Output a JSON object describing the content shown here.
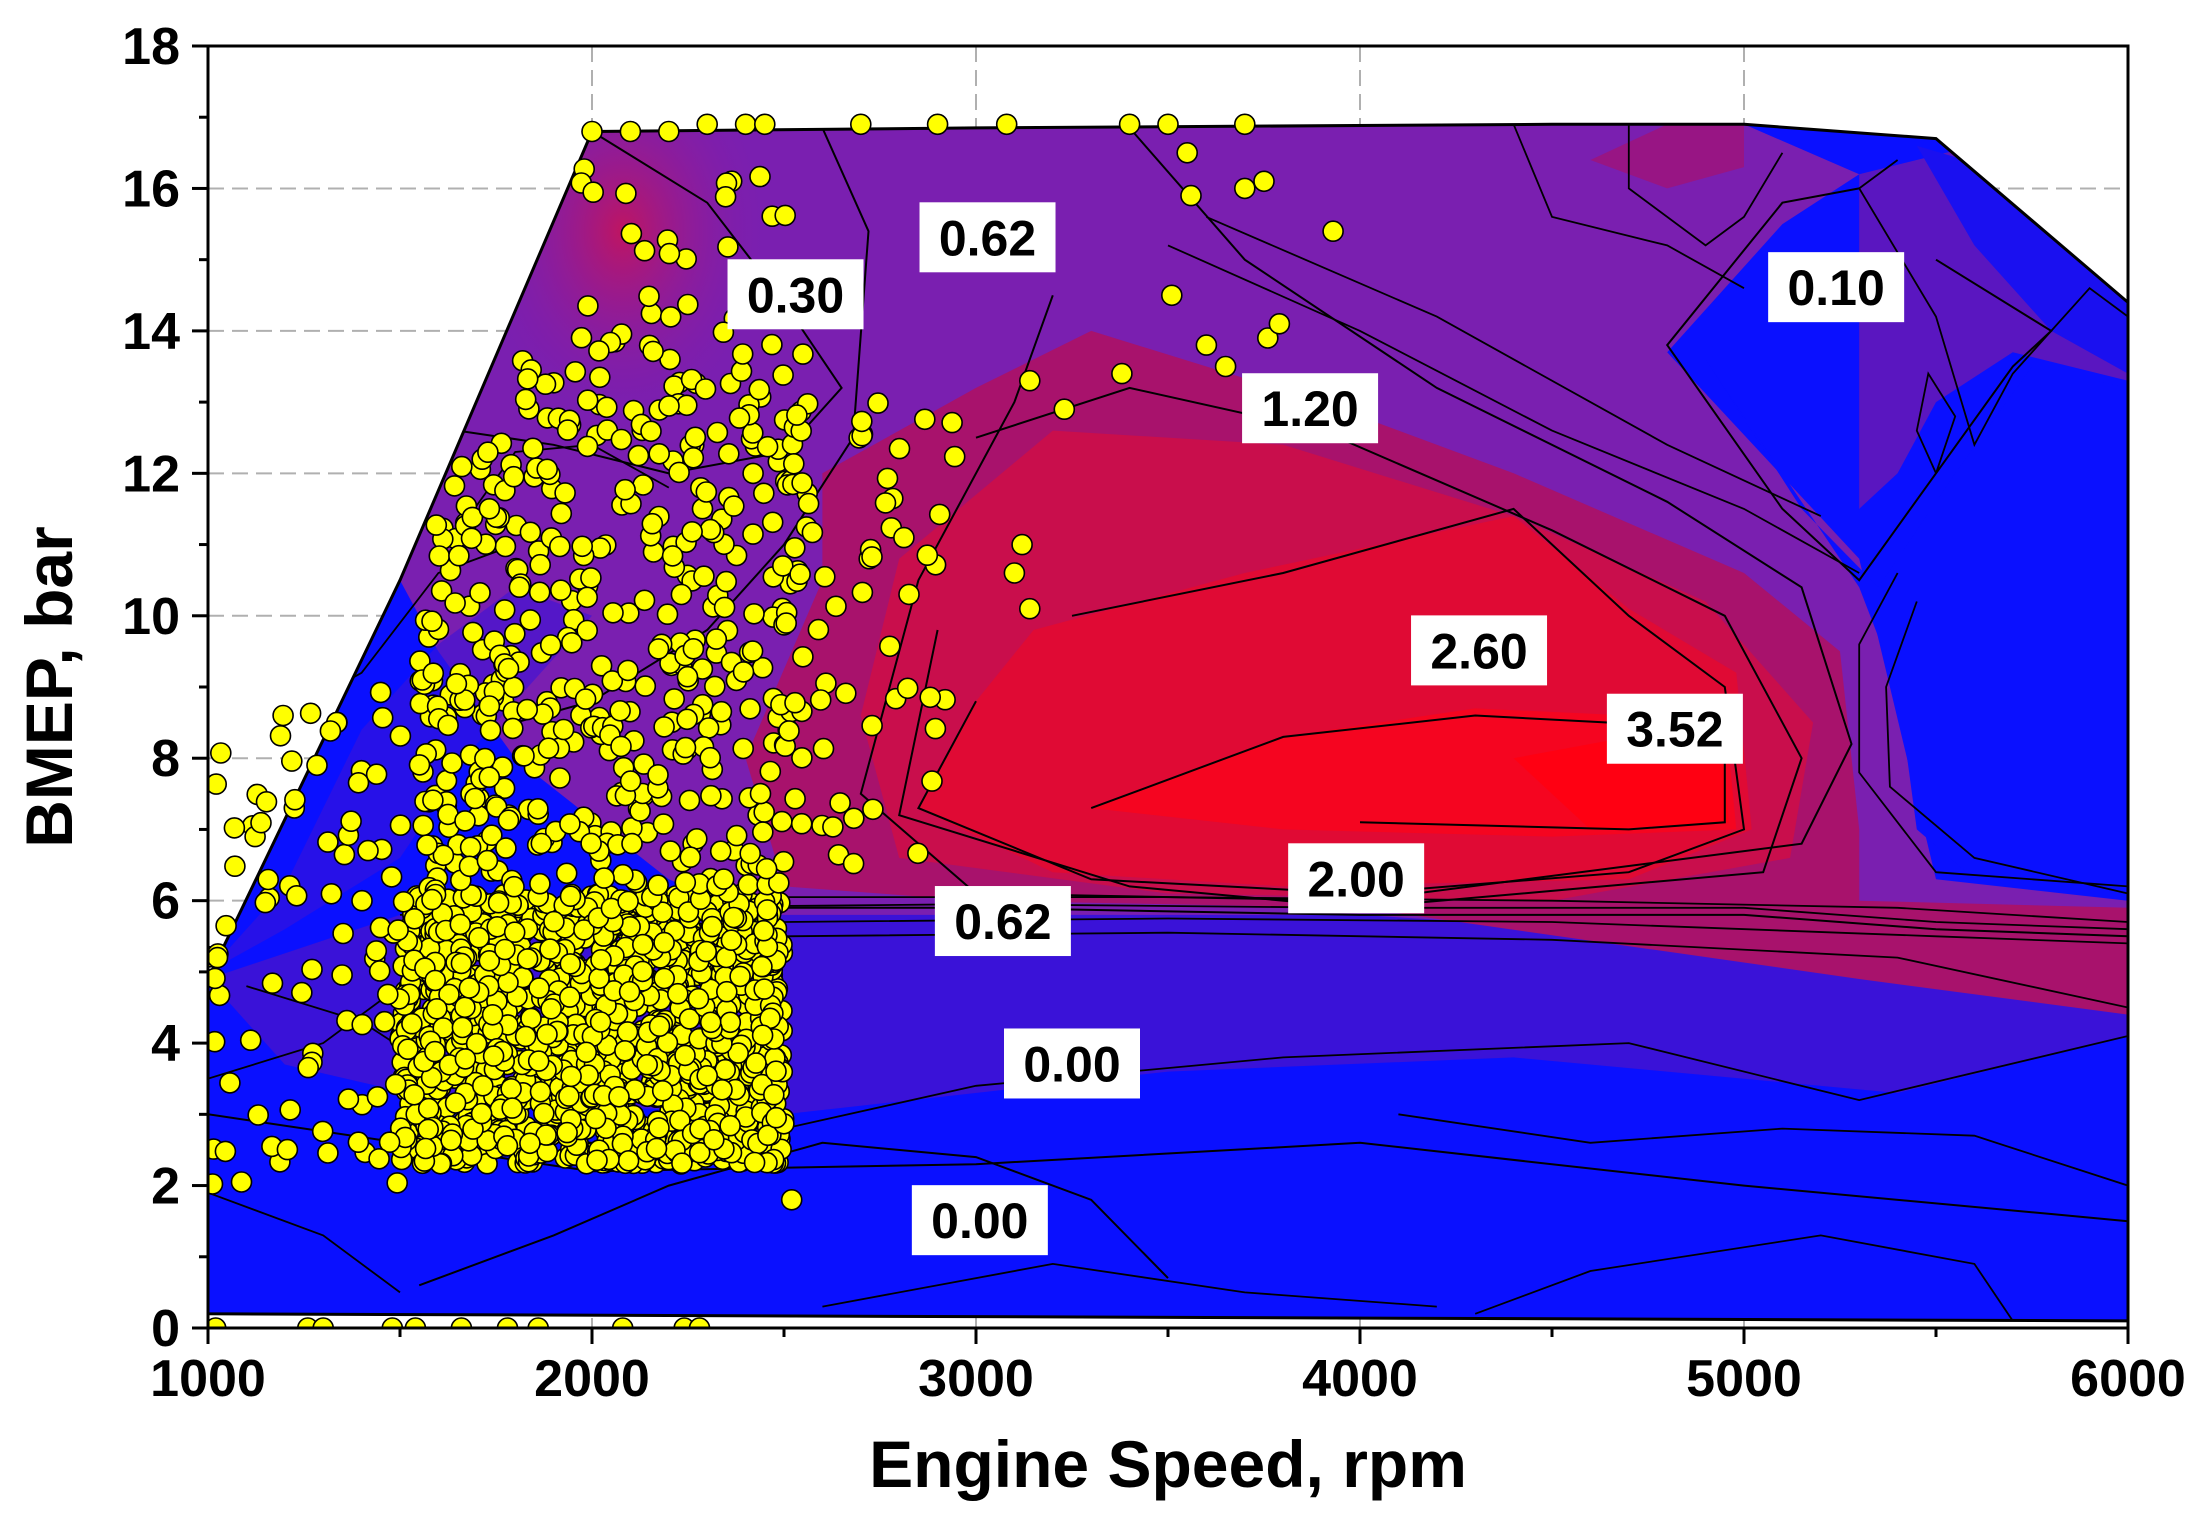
{
  "chart_data": {
    "type": "contour",
    "xlabel": "Engine Speed, rpm",
    "ylabel": "BMEP, bar",
    "xlim": [
      1000,
      6000
    ],
    "ylim": [
      0,
      18
    ],
    "x_ticks": [
      1000,
      2000,
      3000,
      4000,
      5000,
      6000
    ],
    "y_ticks": [
      0,
      2,
      4,
      6,
      8,
      10,
      12,
      14,
      16,
      18
    ],
    "grid": true,
    "colors": {
      "low": "#0a10ff",
      "mid": "#7a1fb0",
      "high": "#ff0012",
      "points": "#ffff00"
    },
    "map_boundary": [
      [
        1000,
        0.2
      ],
      [
        1000,
        4.9
      ],
      [
        1500,
        10.5
      ],
      [
        2000,
        16.8
      ],
      [
        3000,
        16.85
      ],
      [
        4500,
        16.9
      ],
      [
        5000,
        16.9
      ],
      [
        5500,
        16.7
      ],
      [
        6000,
        14.4
      ],
      [
        6000,
        0.1
      ],
      [
        1000,
        0.2
      ]
    ],
    "contour_labels": [
      {
        "text": "0.30",
        "x": 2530,
        "y": 14.5
      },
      {
        "text": "0.62",
        "x": 3030,
        "y": 15.3
      },
      {
        "text": "0.10",
        "x": 5240,
        "y": 14.6
      },
      {
        "text": "1.20",
        "x": 3870,
        "y": 12.9
      },
      {
        "text": "2.60",
        "x": 4310,
        "y": 9.5
      },
      {
        "text": "3.52",
        "x": 4820,
        "y": 8.4
      },
      {
        "text": "2.00",
        "x": 3990,
        "y": 6.3
      },
      {
        "text": "0.62",
        "x": 3070,
        "y": 5.7
      },
      {
        "text": "0.00",
        "x": 3250,
        "y": 3.7
      },
      {
        "text": "0.00",
        "x": 3010,
        "y": 1.5
      }
    ],
    "contour_levels": [
      {
        "level": 0.3,
        "points": [
          [
            2000,
            16.8
          ],
          [
            2300,
            15.8
          ],
          [
            2500,
            14.4
          ],
          [
            2650,
            13.2
          ],
          [
            2500,
            12.3
          ],
          [
            2200,
            12.0
          ],
          [
            1900,
            12.4
          ],
          [
            1650,
            12.6
          ]
        ]
      },
      {
        "level": 0.62,
        "points": [
          [
            2600,
            16.85
          ],
          [
            2720,
            15.4
          ],
          [
            2680,
            12.5
          ],
          [
            2500,
            11.0
          ],
          [
            2300,
            9.8
          ],
          [
            2000,
            8.8
          ],
          [
            1800,
            8.5
          ]
        ]
      },
      {
        "level": 1.2,
        "points": [
          [
            3400,
            16.85
          ],
          [
            3700,
            15.0
          ],
          [
            4200,
            13.2
          ],
          [
            4800,
            11.6
          ],
          [
            5150,
            10.4
          ],
          [
            5280,
            8.2
          ],
          [
            5150,
            6.8
          ],
          [
            4000,
            6.0
          ],
          [
            3000,
            6.1
          ],
          [
            2700,
            7.5
          ],
          [
            2850,
            10.5
          ],
          [
            3100,
            13.0
          ],
          [
            3200,
            14.5
          ]
        ]
      },
      {
        "level": 2.0,
        "points": [
          [
            3000,
            12.5
          ],
          [
            3400,
            13.2
          ],
          [
            3900,
            12.6
          ],
          [
            4500,
            11.2
          ],
          [
            4950,
            10.0
          ],
          [
            5150,
            8.0
          ],
          [
            5050,
            6.4
          ],
          [
            4000,
            5.9
          ],
          [
            3400,
            6.2
          ],
          [
            2800,
            7.2
          ],
          [
            2900,
            9.8
          ]
        ]
      },
      {
        "level": 2.6,
        "points": [
          [
            3250,
            10.0
          ],
          [
            3800,
            10.6
          ],
          [
            4400,
            11.5
          ],
          [
            4700,
            10.0
          ],
          [
            4950,
            9.0
          ],
          [
            5000,
            7.0
          ],
          [
            4700,
            6.4
          ],
          [
            4000,
            6.1
          ],
          [
            3300,
            6.3
          ],
          [
            2850,
            7.3
          ],
          [
            3000,
            8.8
          ]
        ]
      },
      {
        "level": 3.52,
        "points": [
          [
            3300,
            7.3
          ],
          [
            3800,
            8.3
          ],
          [
            4300,
            8.6
          ],
          [
            4650,
            8.5
          ],
          [
            4950,
            8.0
          ],
          [
            4950,
            7.1
          ],
          [
            4700,
            7.0
          ],
          [
            4000,
            7.1
          ]
        ]
      },
      {
        "level": 0.1,
        "points": [
          [
            5300,
            16.0
          ],
          [
            5100,
            15.8
          ],
          [
            4800,
            13.8
          ],
          [
            5100,
            11.5
          ],
          [
            5300,
            10.5
          ],
          [
            5500,
            12.0
          ],
          [
            5700,
            13.5
          ],
          [
            5800,
            14.0
          ],
          [
            5500,
            15.0
          ]
        ]
      },
      {
        "level": 0.0,
        "points": [
          [
            1000,
            3.0
          ],
          [
            2000,
            2.2
          ],
          [
            3000,
            2.3
          ],
          [
            4000,
            2.6
          ],
          [
            5000,
            2.0
          ],
          [
            5800,
            1.6
          ],
          [
            6000,
            1.5
          ]
        ]
      },
      {
        "level": 0.0,
        "points": [
          [
            1550,
            0.6
          ],
          [
            1900,
            1.3
          ],
          [
            2200,
            2.0
          ],
          [
            2600,
            2.6
          ],
          [
            3000,
            2.4
          ],
          [
            3300,
            1.8
          ],
          [
            3500,
            0.7
          ]
        ]
      },
      {
        "level": 0.62,
        "points": [
          [
            2500,
            5.9
          ],
          [
            3000,
            5.9
          ],
          [
            4000,
            5.8
          ],
          [
            5000,
            5.8
          ],
          [
            5500,
            5.6
          ],
          [
            6000,
            5.5
          ]
        ]
      }
    ],
    "operating_points_shown": true
  }
}
